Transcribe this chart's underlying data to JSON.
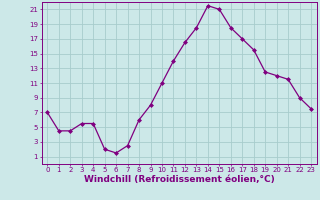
{
  "x": [
    0,
    1,
    2,
    3,
    4,
    5,
    6,
    7,
    8,
    9,
    10,
    11,
    12,
    13,
    14,
    15,
    16,
    17,
    18,
    19,
    20,
    21,
    22,
    23
  ],
  "y": [
    7,
    4.5,
    4.5,
    5.5,
    5.5,
    2,
    1.5,
    2.5,
    6,
    8,
    11,
    14,
    16.5,
    18.5,
    21.5,
    21,
    18.5,
    17,
    15.5,
    12.5,
    12,
    11.5,
    9,
    7.5
  ],
  "line_color": "#800080",
  "marker": "D",
  "marker_size": 2,
  "bg_color": "#cce8e8",
  "grid_color": "#a8cccc",
  "xlabel": "Windchill (Refroidissement éolien,°C)",
  "xlim": [
    -0.5,
    23.5
  ],
  "ylim": [
    0,
    22
  ],
  "yticks": [
    1,
    3,
    5,
    7,
    9,
    11,
    13,
    15,
    17,
    19,
    21
  ],
  "xticks": [
    0,
    1,
    2,
    3,
    4,
    5,
    6,
    7,
    8,
    9,
    10,
    11,
    12,
    13,
    14,
    15,
    16,
    17,
    18,
    19,
    20,
    21,
    22,
    23
  ],
  "tick_color": "#800080",
  "tick_fontsize": 5,
  "xlabel_fontsize": 6.5,
  "spine_color": "#800080",
  "linewidth": 0.9
}
